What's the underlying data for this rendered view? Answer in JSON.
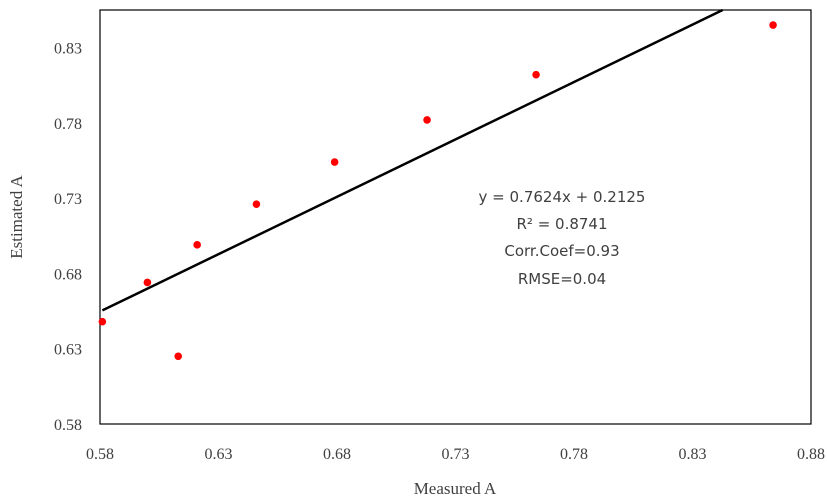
{
  "chart_data": {
    "type": "scatter",
    "title": "",
    "xlabel": "Measured A",
    "ylabel": "Estimated A",
    "xlim": [
      0.58,
      0.88
    ],
    "ylim": [
      0.58,
      0.855
    ],
    "xticks": [
      0.58,
      0.63,
      0.68,
      0.73,
      0.78,
      0.83,
      0.88
    ],
    "yticks": [
      0.58,
      0.63,
      0.68,
      0.73,
      0.78,
      0.83
    ],
    "xtick_labels": [
      "0.58",
      "0.63",
      "0.68",
      "0.73",
      "0.78",
      "0.83",
      "0.88"
    ],
    "ytick_labels": [
      "0.58",
      "0.63",
      "0.68",
      "0.73",
      "0.78",
      "0.83"
    ],
    "grid": false,
    "legend": "none",
    "series": [
      {
        "color": "#ff0000",
        "points": [
          {
            "x": 0.581,
            "y": 0.648
          },
          {
            "x": 0.6,
            "y": 0.674
          },
          {
            "x": 0.613,
            "y": 0.625
          },
          {
            "x": 0.621,
            "y": 0.699
          },
          {
            "x": 0.646,
            "y": 0.726
          },
          {
            "x": 0.679,
            "y": 0.754
          },
          {
            "x": 0.718,
            "y": 0.782
          },
          {
            "x": 0.764,
            "y": 0.812
          },
          {
            "x": 0.864,
            "y": 0.845
          }
        ]
      }
    ],
    "trendline": {
      "slope": 0.7624,
      "intercept": 0.2125,
      "color": "#000000"
    },
    "annotations": [
      "y = 0.7624x + 0.2125",
      "R² = 0.8741",
      "Corr.Coef=0.93",
      "RMSE=0.04"
    ]
  }
}
